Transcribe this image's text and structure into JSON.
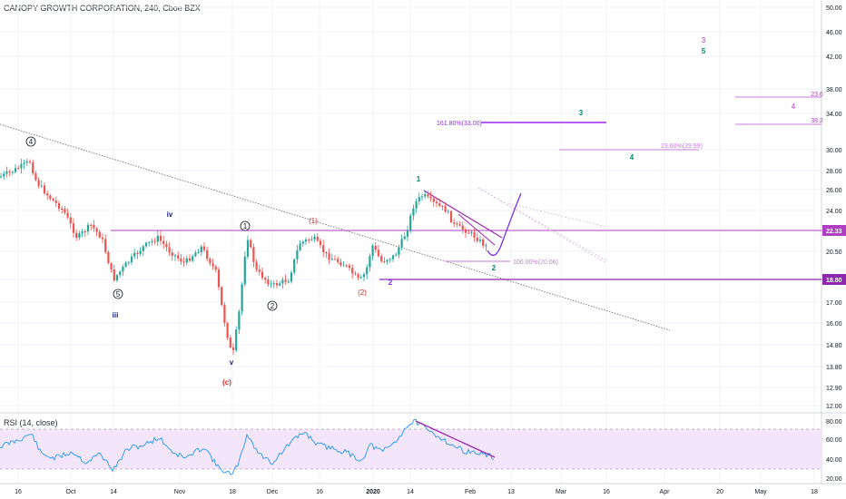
{
  "header": {
    "title": "CANOPY GROWTH CORPORATION, 240, Cboe BZX"
  },
  "rsi": {
    "label": "RSI (14, close)",
    "y_ticks": [
      "80.00",
      "60.00",
      "40.00",
      "20.00"
    ],
    "band": [
      30,
      70
    ]
  },
  "chart_data": {
    "type": "candlestick",
    "title": "CANOPY GROWTH CORPORATION, 240, Cboe BZX",
    "y_ticks": [
      "50.00",
      "46.00",
      "42.00",
      "38.00",
      "34.00",
      "30.00",
      "28.00",
      "26.00",
      "24.00",
      "22.00",
      "20.50",
      "18.80",
      "17.00",
      "16.00",
      "14.80",
      "13.80",
      "12.90",
      "12.00"
    ],
    "x_ticks": [
      "16",
      "Oct",
      "14",
      "Nov",
      "18",
      "Dec",
      "16",
      "2020",
      "14",
      "Feb",
      "13",
      "Mar",
      "16",
      "Apr",
      "20",
      "May",
      "18"
    ],
    "price_labels": [
      {
        "value": "22.33",
        "color": "#b03fc2"
      },
      {
        "value": "18.80",
        "color": "#8c27b0"
      }
    ],
    "wave_labels": [
      "4",
      "5",
      "iii",
      "iv",
      "1",
      "v",
      "(c)",
      "2",
      "(1)",
      "(2)",
      "1",
      "2",
      "2",
      "3",
      "4",
      "3",
      "5",
      "4",
      "23.6",
      "38.2"
    ],
    "fib_labels": [
      "161.80%(33.00)",
      "23.60%(29.99)",
      "100.00%(20.06)"
    ],
    "colors": {
      "up": "#26a69a",
      "down": "#ef5350",
      "wave_magenta": "#b03fc2",
      "projection": "#7b2ff7",
      "rsi_line": "#2196f3",
      "rsi_band": "#f3e6fb"
    }
  }
}
